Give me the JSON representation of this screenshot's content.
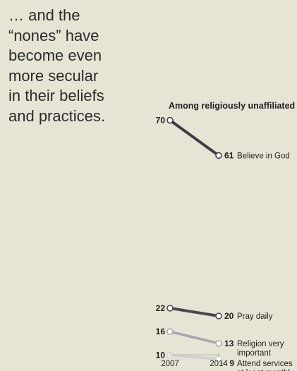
{
  "headline": [
    "… and the",
    "“nones”  have",
    "become even",
    "more secular",
    "in their beliefs",
    "and practices."
  ],
  "chart_data": {
    "type": "line",
    "title": "Among religiously unaffiliated",
    "categories": [
      "2007",
      "2014"
    ],
    "series": [
      {
        "name": "Believe in God",
        "label_lines": [
          "Believe in God"
        ],
        "values": [
          70,
          61
        ],
        "color": "#3f3b45"
      },
      {
        "name": "Pray daily",
        "label_lines": [
          "Pray daily"
        ],
        "values": [
          22,
          20
        ],
        "color": "#4a4650"
      },
      {
        "name": "Religion very important",
        "label_lines": [
          "Religion very",
          "important"
        ],
        "values": [
          16,
          13
        ],
        "color": "#a9a4ad"
      },
      {
        "name": "Attend services at least monthly",
        "label_lines": [
          "Attend services",
          "at least monthly"
        ],
        "values": [
          10,
          9
        ],
        "color": "#d2cfd6"
      }
    ],
    "ylim": [
      0,
      100
    ],
    "grid": false,
    "legend": "direct labels at line ends"
  }
}
